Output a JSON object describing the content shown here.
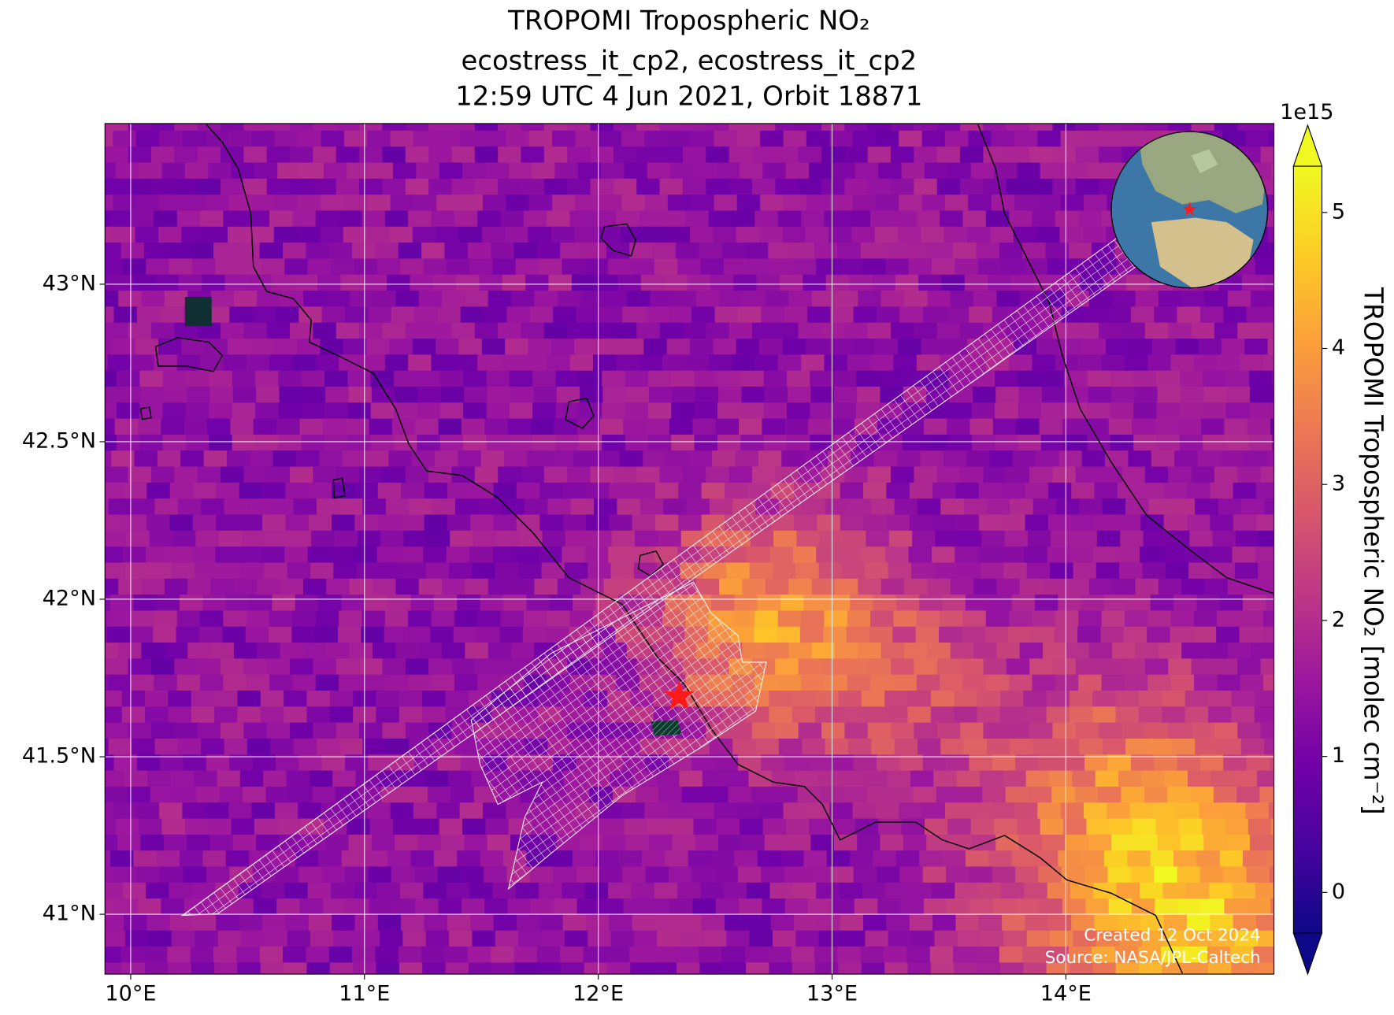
{
  "title": [
    "TROPOMI Tropospheric NO₂",
    "ecostress_it_cp2, ecostress_it_cp2",
    "12:59 UTC 4 Jun 2021, Orbit 18871"
  ],
  "xaxis": {
    "lim": [
      9.89,
      14.89
    ],
    "ticks": [
      {
        "value": 10,
        "label": "10°E"
      },
      {
        "value": 11,
        "label": "11°E"
      },
      {
        "value": 12,
        "label": "12°E"
      },
      {
        "value": 13,
        "label": "13°E"
      },
      {
        "value": 14,
        "label": "14°E"
      }
    ]
  },
  "yaxis": {
    "lim": [
      40.81,
      43.51
    ],
    "ticks": [
      {
        "value": 41,
        "label": "41°N"
      },
      {
        "value": 41.5,
        "label": "41.5°N"
      },
      {
        "value": 42,
        "label": "42°N"
      },
      {
        "value": 42.5,
        "label": "42.5°N"
      },
      {
        "value": 43,
        "label": "43°N"
      }
    ]
  },
  "colorbar": {
    "lim": [
      -0.3,
      5.34
    ],
    "ticks": [
      0,
      1,
      2,
      3,
      4,
      5
    ],
    "exponent": "1e15",
    "label": "TROPOMI Tropospheric NO₂ [molec cm⁻²]"
  },
  "annotations": [
    "Created 12 Oct 2024",
    "Source: NASA/JPL-Caltech"
  ]
}
